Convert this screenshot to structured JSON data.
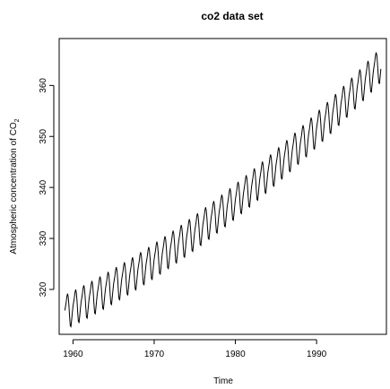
{
  "chart_data": {
    "type": "line",
    "title": "co2 data set",
    "xlabel": "Time",
    "ylabel_text": "Atmospheric concentration of CO",
    "ylabel_subscript": "2",
    "xlim": [
      1958.3,
      1998.6
    ],
    "ylim": [
      311.2,
      369.2
    ],
    "xticks": [
      1960,
      1970,
      1980,
      1990
    ],
    "yticks": [
      320,
      330,
      340,
      350,
      360
    ],
    "grid": false,
    "legend": "none",
    "line_color": "#000000",
    "series": [
      {
        "frequency": "monthly",
        "start": 1959.0,
        "trend": {
          "start": 315.4,
          "linear_per_year": 0.7887,
          "quadratic_per_year2": 0.0118
        },
        "seasonal": [
          0.48,
          1.25,
          2.01,
          3.02,
          3.51,
          2.79,
          1.09,
          -1.22,
          -3.05,
          -3.29,
          -2.07,
          -0.72
        ],
        "end": 1997.917
      }
    ]
  }
}
